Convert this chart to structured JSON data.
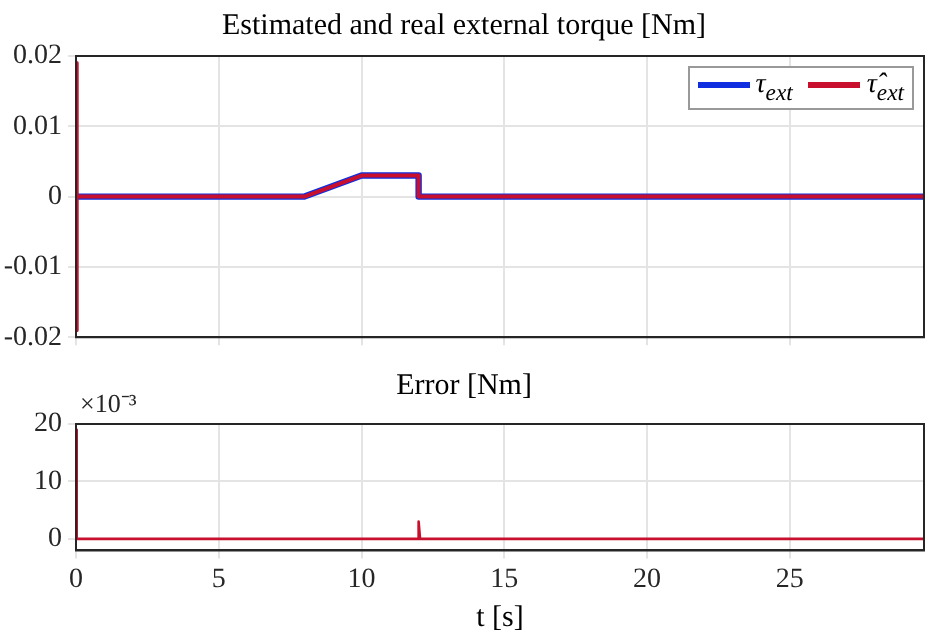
{
  "chart_data": [
    {
      "type": "line",
      "title": "Estimated and real external torque [Nm]",
      "xlim": [
        0,
        29.7
      ],
      "xticks": [
        0,
        5,
        10,
        15,
        20,
        25
      ],
      "ylim": [
        -0.02,
        0.02
      ],
      "yticks": [
        -0.02,
        -0.01,
        0,
        0.01,
        0.02
      ],
      "grid": true,
      "legend": "top right",
      "tick_labels": "y",
      "marker": "none",
      "line_style": "solid",
      "series": [
        {
          "name": "τ$_{ext}$",
          "color": "#0f2ee0",
          "x": [
            0,
            8,
            10,
            12,
            12,
            29.7
          ],
          "values": [
            0,
            0,
            0.003,
            0.003,
            0,
            0
          ]
        },
        {
          "name": "τ̂$_{ext}$",
          "color": "#c8102e",
          "x": [
            0,
            0,
            0.05,
            8,
            10,
            12,
            12,
            29.7
          ],
          "values": [
            0.019,
            -0.019,
            0,
            0,
            0.003,
            0.003,
            0,
            0
          ]
        }
      ]
    },
    {
      "type": "line",
      "title": "Error [Nm]",
      "xlabel": "t [s]",
      "annotations": [
        "×10⁻³"
      ],
      "xlim": [
        0,
        29.7
      ],
      "xticks": [
        0,
        5,
        10,
        15,
        20,
        25
      ],
      "ylim": [
        -2,
        20
      ],
      "yticks": [
        0,
        10,
        20
      ],
      "grid": true,
      "marker": "none",
      "line_style": "solid",
      "series": [
        {
          "color": "#c8102e",
          "x": [
            0,
            0,
            0.05,
            12,
            12,
            12.05,
            29.7
          ],
          "values": [
            19,
            0,
            0,
            0,
            3,
            0,
            0
          ]
        }
      ]
    }
  ]
}
